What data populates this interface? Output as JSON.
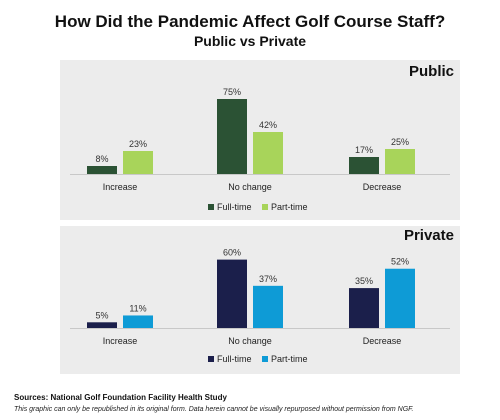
{
  "title": "How Did the Pandemic Affect Golf Course Staff?",
  "subtitle": "Public vs Private",
  "source": "Sources: National Golf Foundation Facility Health Study",
  "disclaimer": "This graphic can only be republished in its original form. Data herein cannot be visually repurposed without permission from NGF.",
  "chart_data": [
    {
      "type": "bar",
      "title": "Public",
      "categories": [
        "Increase",
        "No change",
        "Decrease"
      ],
      "series": [
        {
          "name": "Full-time",
          "values": [
            8,
            75,
            17
          ],
          "labels": [
            "8%",
            "75%",
            "17%"
          ],
          "color": "#2b5234"
        },
        {
          "name": "Part-time",
          "values": [
            23,
            42,
            25
          ],
          "labels": [
            "23%",
            "42%",
            "25%"
          ],
          "color": "#a8d45a"
        }
      ],
      "ylim": [
        0,
        80
      ],
      "legend": "bottom-center",
      "grid": false
    },
    {
      "type": "bar",
      "title": "Private",
      "categories": [
        "Increase",
        "No change",
        "Decrease"
      ],
      "series": [
        {
          "name": "Full-time",
          "values": [
            5,
            60,
            35
          ],
          "labels": [
            "5%",
            "60%",
            "35%"
          ],
          "color": "#1b1f4b"
        },
        {
          "name": "Part-time",
          "values": [
            11,
            37,
            52
          ],
          "labels": [
            "11%",
            "37%",
            "52%"
          ],
          "color": "#0e9bd6"
        }
      ],
      "ylim": [
        0,
        80
      ],
      "legend": "bottom-center",
      "grid": false
    }
  ]
}
